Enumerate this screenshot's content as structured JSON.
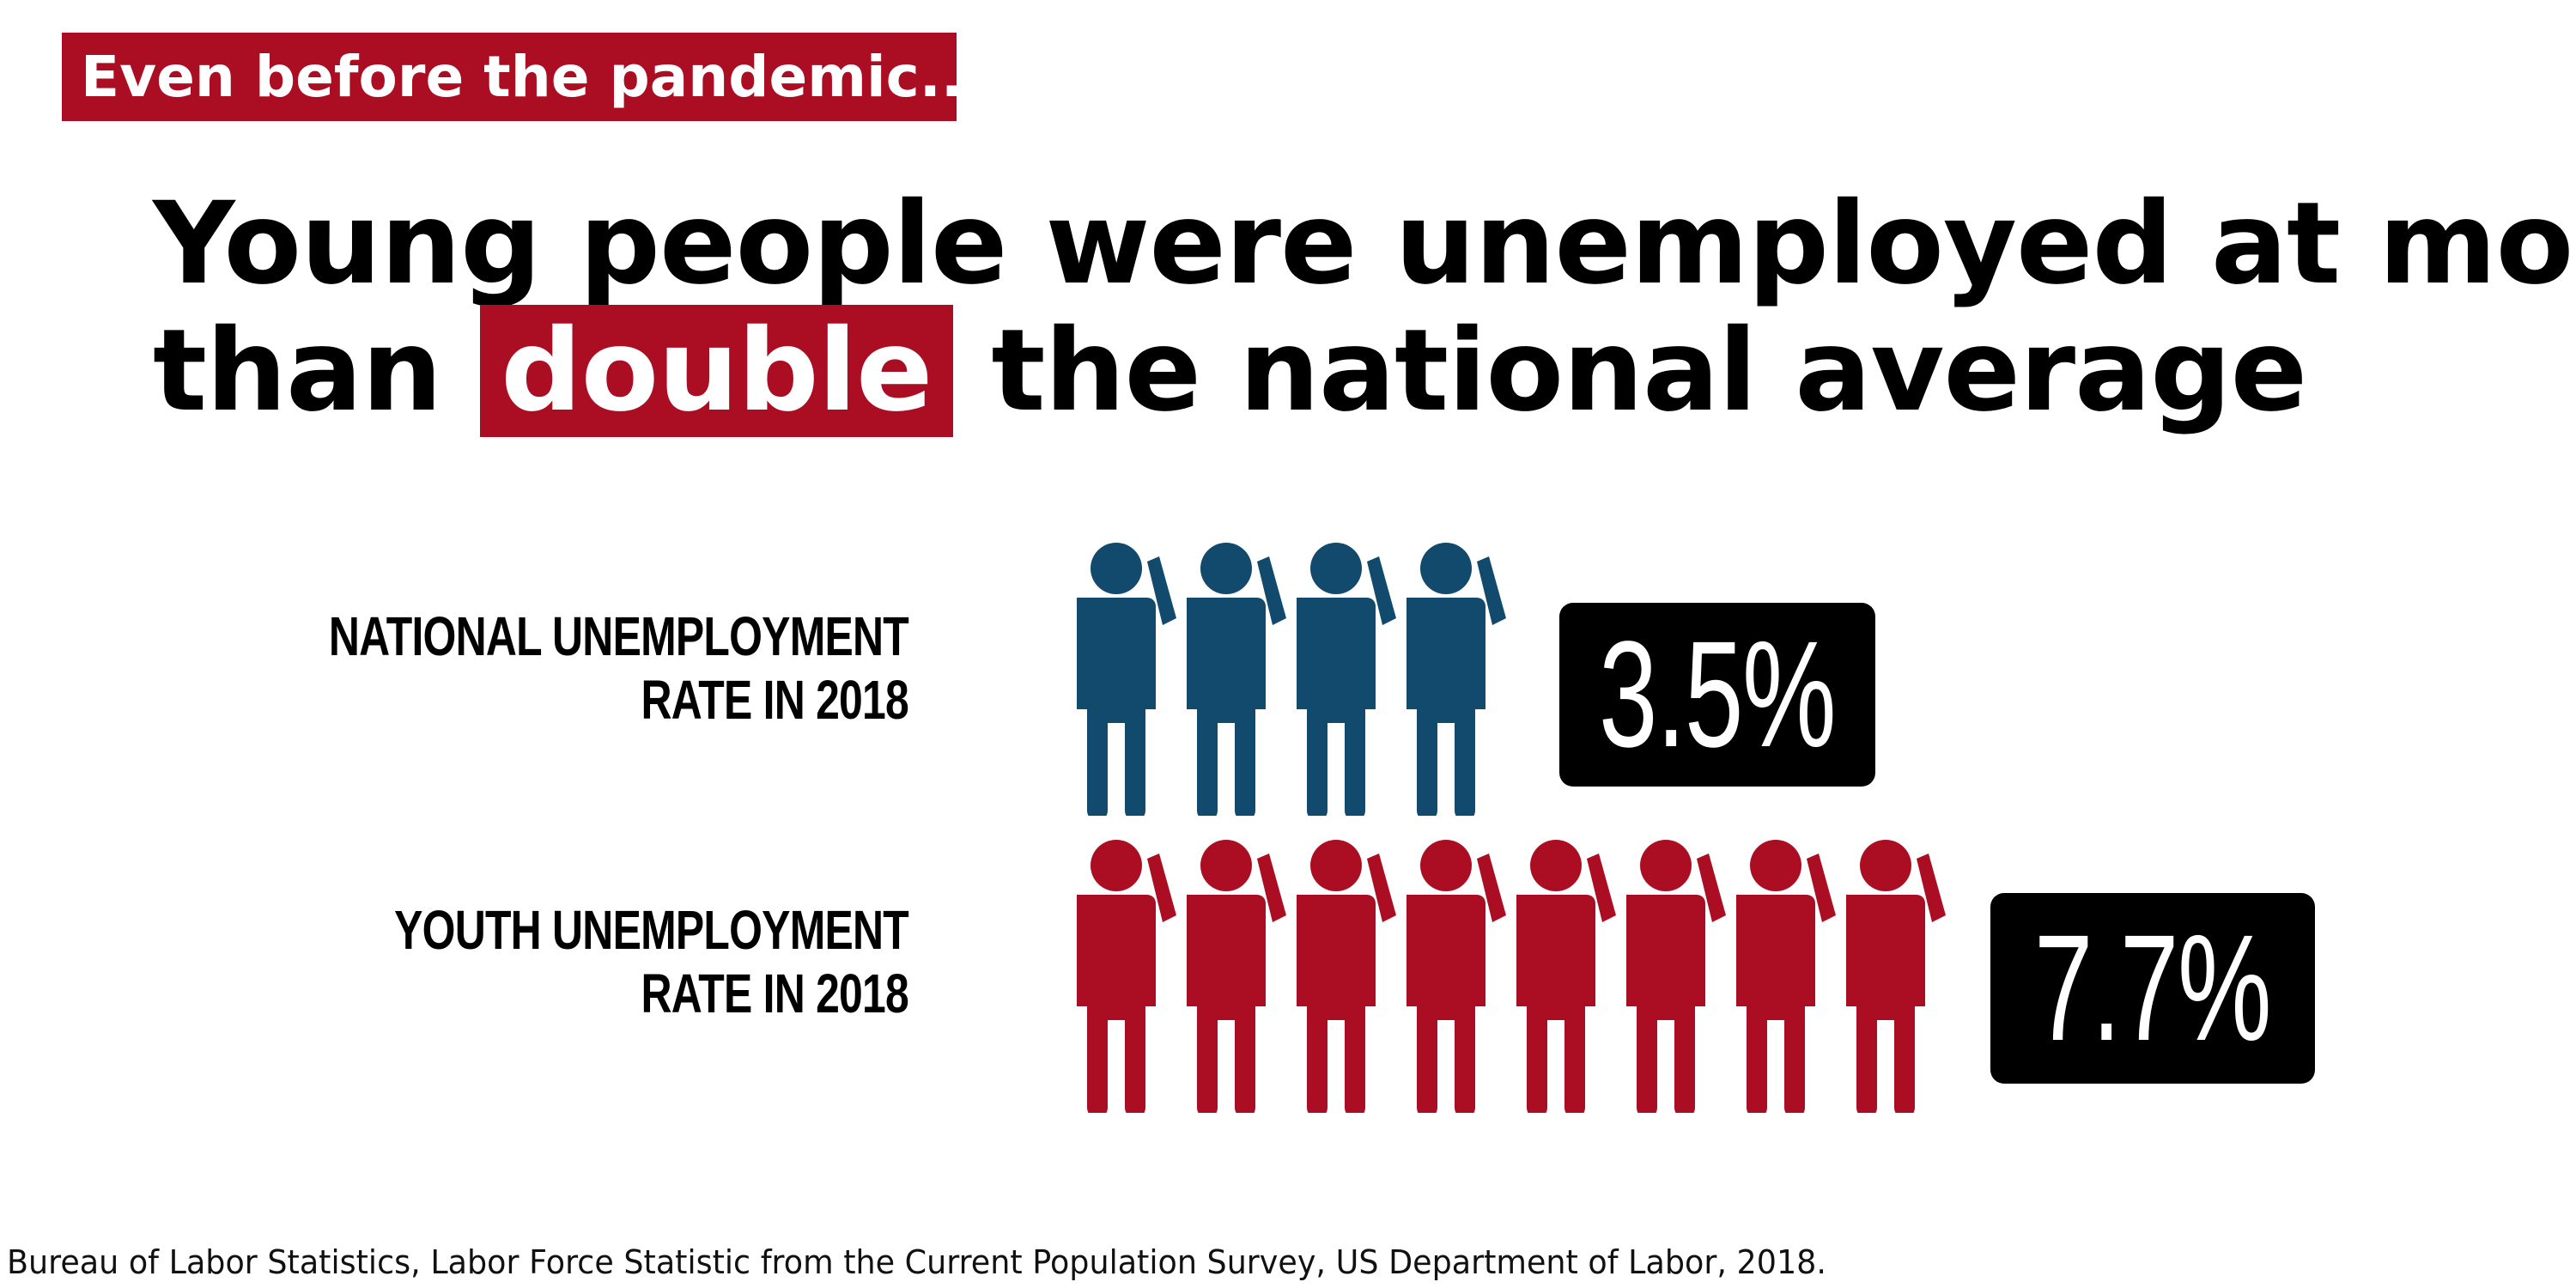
{
  "kicker": "Even before the pandemic...",
  "headline": {
    "line1": "Young people were unemployed at more",
    "line2_before": "than",
    "highlight": "double",
    "line2_after": "the national average"
  },
  "colors": {
    "accent_red": "#ab0d23",
    "national_blue": "#124a6e",
    "youth_red": "#ab0d23"
  },
  "chart_data": {
    "type": "pictograph",
    "rows": [
      {
        "label_line1": "NATIONAL UNEMPLOYMENT",
        "label_line2": "RATE IN 2018",
        "value": 3.5,
        "value_label": "3.5%",
        "icon": "person-icon",
        "icon_count": 4
      },
      {
        "label_line1": "YOUTH UNEMPLOYMENT",
        "label_line2": "RATE IN 2018",
        "value": 7.7,
        "value_label": "7.7%",
        "icon": "person-icon",
        "icon_count": 8
      }
    ]
  },
  "source": "Bureau of Labor Statistics, Labor Force Statistic from the Current Population Survey, US Department of Labor, 2018."
}
